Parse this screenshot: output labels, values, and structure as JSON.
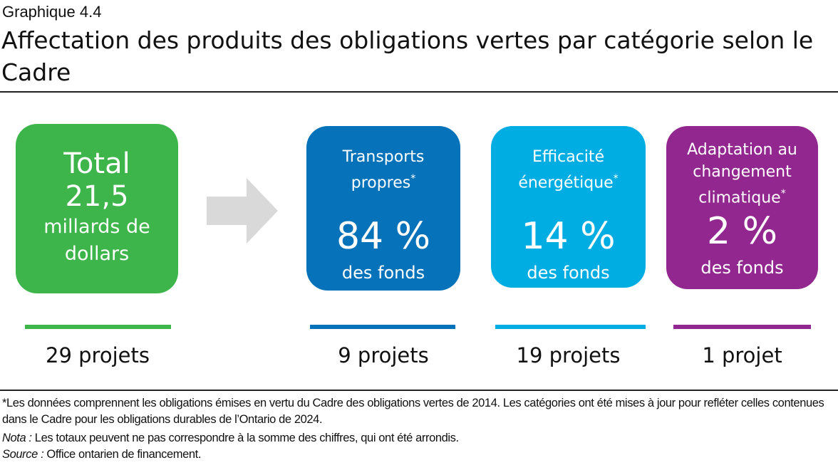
{
  "label": "Graphique 4.4",
  "title": "Affectation des produits des obligations vertes par catégorie selon le Cadre",
  "total": {
    "line1": "Total",
    "amount": "21,5",
    "line2": "millards de",
    "line3": "dollars",
    "projects": "29 projets",
    "color": "#3db54a"
  },
  "arrow_color": "#d9d9d9",
  "chart_data": {
    "type": "table",
    "unit": "% des fonds",
    "categories": [
      "Transports propres*",
      "Efficacité énergétique*",
      "Adaptation au changement climatique*"
    ],
    "values": [
      84,
      14,
      2
    ],
    "value_labels": [
      "84 %",
      "14 %",
      "2 %"
    ],
    "sublabel": "des fonds",
    "projects": [
      "9 projets",
      "19 projets",
      "1 projet"
    ],
    "colors": [
      "#0672b9",
      "#00ade2",
      "#92278f"
    ]
  },
  "footnotes": {
    "asterisk": "*Les données comprennent les obligations émises en vertu du Cadre des obligations vertes de 2014. Les catégories ont été mises à jour pour refléter celles contenues dans le Cadre pour les obligations durables de l’Ontario de 2024.",
    "nota_label": "Nota :",
    "nota": " Les totaux peuvent ne pas correspondre à la somme des chiffres, qui ont été arrondis.",
    "source_label": "Source :",
    "source": " Office ontarien de financement."
  }
}
